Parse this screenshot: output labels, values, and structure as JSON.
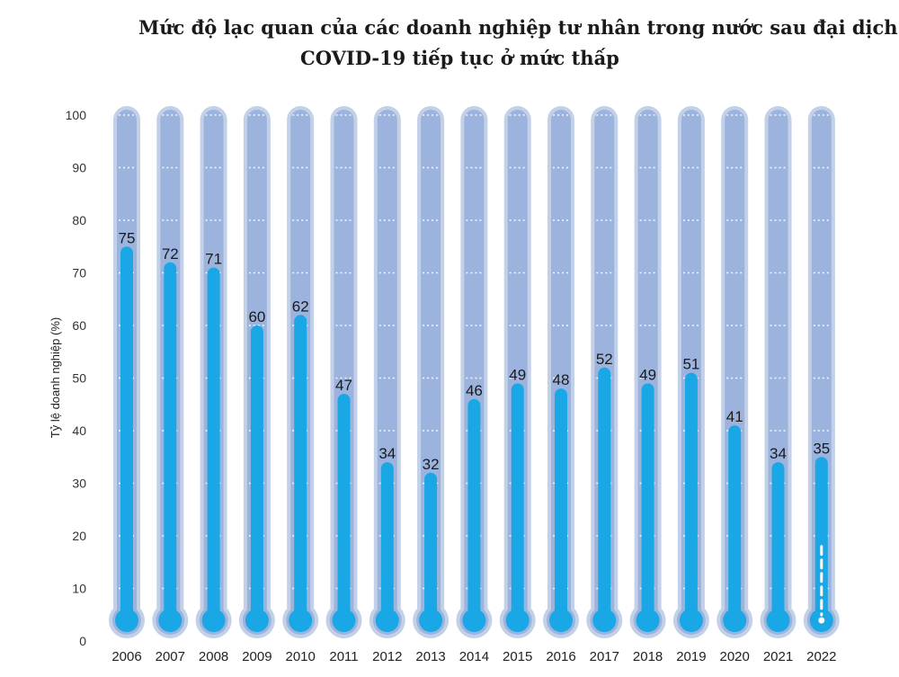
{
  "chart_data": {
    "type": "bar",
    "title_line1": "Mức độ lạc quan của các doanh nghiệp tư nhân trong nước sau đại dịch",
    "title_line2": "COVID-19 tiếp tục ở mức thấp",
    "ylabel": "Tỷ lệ doanh nghiệp (%)",
    "xlabel": "",
    "ylim": [
      0,
      100
    ],
    "yticks": [
      0,
      10,
      20,
      30,
      40,
      50,
      60,
      70,
      80,
      90,
      100
    ],
    "categories": [
      "2006",
      "2007",
      "2008",
      "2009",
      "2010",
      "2011",
      "2012",
      "2013",
      "2014",
      "2015",
      "2016",
      "2017",
      "2018",
      "2019",
      "2020",
      "2021",
      "2022"
    ],
    "values": [
      75,
      72,
      71,
      60,
      62,
      47,
      34,
      32,
      46,
      49,
      48,
      52,
      49,
      51,
      41,
      34,
      35
    ],
    "grid": true,
    "style": "thermometer",
    "colors": {
      "tube_outer": "#c2d0e8",
      "tube_inner": "#9cb4dd",
      "fill": "#19a7e6",
      "grid": "#ffffff",
      "dash_2022": "#ffffff"
    }
  }
}
